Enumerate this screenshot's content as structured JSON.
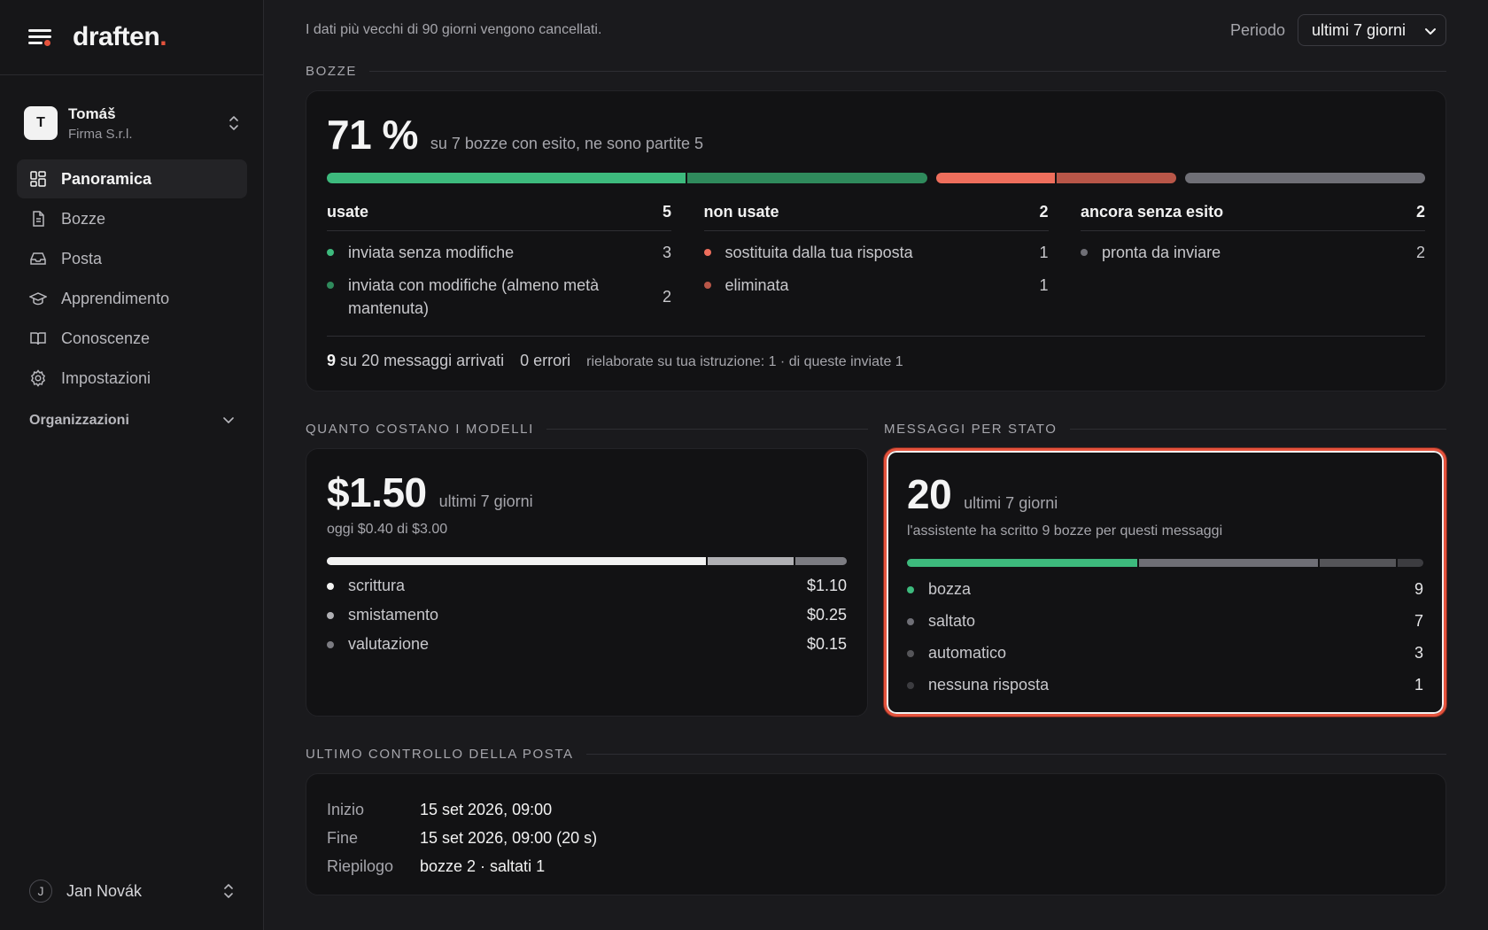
{
  "brand": {
    "name": "draften",
    "dot": "."
  },
  "account": {
    "initial": "T",
    "name": "Tomáš",
    "org": "Firma S.r.l."
  },
  "nav": [
    {
      "label": "Panoramica",
      "icon": "dashboard-grid-icon",
      "active": true
    },
    {
      "label": "Bozze",
      "icon": "document-icon",
      "active": false
    },
    {
      "label": "Posta",
      "icon": "inbox-icon",
      "active": false
    },
    {
      "label": "Apprendimento",
      "icon": "graduation-cap-icon",
      "active": false
    },
    {
      "label": "Conoscenze",
      "icon": "book-open-icon",
      "active": false
    },
    {
      "label": "Impostazioni",
      "icon": "gear-icon",
      "active": false
    }
  ],
  "organizations_label": "Organizzazioni",
  "user": {
    "initial": "J",
    "name": "Jan Novák"
  },
  "topbar": {
    "retention_note": "I dati più vecchi di 90 giorni vengono cancellati.",
    "period_label": "Periodo",
    "period_value": "ultimi 7 giorni"
  },
  "colors": {
    "green": "#3dba7d",
    "green_dark": "#2f8a5c",
    "red": "#ee6e5c",
    "red_dark": "#b85648",
    "gray": "#6f6f76",
    "white": "#f2f2f2",
    "light_gray": "#b0b0b4",
    "mid_gray": "#7c7c82",
    "dark_gray": "#555559",
    "darker_gray": "#3c3c40",
    "accent": "#e5533d"
  },
  "bozze": {
    "section_title": "BOZZE",
    "percent": "71 %",
    "summary": "su 7 bozze con esito, ne sono partite 5",
    "bar": [
      {
        "value": 3,
        "color": "#3dba7d"
      },
      {
        "value": 2,
        "color": "#2f8a5c"
      },
      {
        "value": 1,
        "color": "#ee6e5c"
      },
      {
        "value": 1,
        "color": "#b85648"
      },
      {
        "value": 2,
        "color": "#6f6f76"
      }
    ],
    "columns": [
      {
        "title": "usate",
        "count": "5",
        "items": [
          {
            "label": "inviata senza modifiche",
            "count": "3",
            "color": "#3dba7d"
          },
          {
            "label": "inviata con modifiche (almeno metà mantenuta)",
            "count": "2",
            "color": "#2f8a5c"
          }
        ]
      },
      {
        "title": "non usate",
        "count": "2",
        "items": [
          {
            "label": "sostituita dalla tua risposta",
            "count": "1",
            "color": "#ee6e5c"
          },
          {
            "label": "eliminata",
            "count": "1",
            "color": "#b85648"
          }
        ]
      },
      {
        "title": "ancora senza esito",
        "count": "2",
        "items": [
          {
            "label": "pronta da inviare",
            "count": "2",
            "color": "#6f6f76"
          }
        ]
      }
    ],
    "footer": {
      "arrived_num": "9",
      "arrived_text": "su 20 messaggi arrivati",
      "errors": "0 errori",
      "reworked": "rielaborate su tua istruzione: 1 · di queste inviate 1"
    }
  },
  "costs": {
    "section_title": "QUANTO COSTANO I MODELLI",
    "total": "$1.50",
    "period": "ultimi 7 giorni",
    "today_note": "oggi $0.40 di $3.00",
    "bar": [
      {
        "value": 1.1,
        "color": "#f2f2f2"
      },
      {
        "value": 0.25,
        "color": "#b0b0b4"
      },
      {
        "value": 0.15,
        "color": "#7c7c82"
      }
    ],
    "items": [
      {
        "label": "scrittura",
        "value": "$1.10",
        "color": "#f2f2f2"
      },
      {
        "label": "smistamento",
        "value": "$0.25",
        "color": "#b0b0b4"
      },
      {
        "label": "valutazione",
        "value": "$0.15",
        "color": "#7c7c82"
      }
    ]
  },
  "messages": {
    "section_title": "MESSAGGI PER STATO",
    "total": "20",
    "period": "ultimi 7 giorni",
    "note": "l'assistente ha scritto 9 bozze per questi messaggi",
    "bar": [
      {
        "value": 9,
        "color": "#3dba7d"
      },
      {
        "value": 7,
        "color": "#6f6f76"
      },
      {
        "value": 3,
        "color": "#555559"
      },
      {
        "value": 1,
        "color": "#3c3c40"
      }
    ],
    "items": [
      {
        "label": "bozza",
        "value": "9",
        "color": "#3dba7d"
      },
      {
        "label": "saltato",
        "value": "7",
        "color": "#6f6f76"
      },
      {
        "label": "automatico",
        "value": "3",
        "color": "#555559"
      },
      {
        "label": "nessuna risposta",
        "value": "1",
        "color": "#3c3c40"
      }
    ]
  },
  "last_check": {
    "section_title": "ULTIMO CONTROLLO DELLA POSTA",
    "rows": [
      {
        "key": "Inizio",
        "value": "15 set 2026, 09:00"
      },
      {
        "key": "Fine",
        "value": "15 set 2026, 09:00 (20 s)"
      },
      {
        "key": "Riepilogo",
        "value": "bozze 2 · saltati 1"
      }
    ]
  }
}
